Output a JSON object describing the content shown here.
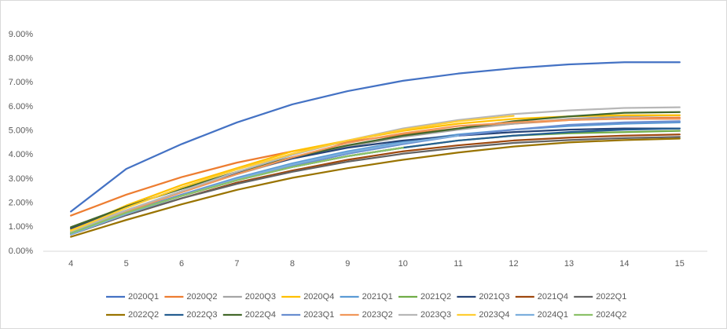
{
  "chart_data": {
    "type": "line",
    "categories": [
      4,
      5,
      6,
      7,
      8,
      9,
      10,
      11,
      12,
      13,
      14,
      15
    ],
    "ylim": [
      0,
      9
    ],
    "yticks": [
      {
        "value": 0,
        "label": "0.00%"
      },
      {
        "value": 1,
        "label": "1.00%"
      },
      {
        "value": 2,
        "label": "2.00%"
      },
      {
        "value": 3,
        "label": "3.00%"
      },
      {
        "value": 4,
        "label": "4.00%"
      },
      {
        "value": 5,
        "label": "5.00%"
      },
      {
        "value": 6,
        "label": "6.00%"
      },
      {
        "value": 7,
        "label": "7.00%"
      },
      {
        "value": 8,
        "label": "8.00%"
      },
      {
        "value": 9,
        "label": "9.00%"
      }
    ],
    "grid": false,
    "legend": "bottom",
    "series": [
      {
        "name": "2020Q1",
        "color": "#4472C4",
        "values": [
          1.65,
          3.42,
          4.45,
          5.35,
          6.1,
          6.65,
          7.08,
          7.38,
          7.6,
          7.76,
          7.85,
          7.85
        ]
      },
      {
        "name": "2020Q2",
        "color": "#ED7D31",
        "values": [
          1.48,
          2.35,
          3.08,
          3.68,
          4.15,
          4.55,
          4.85,
          5.1,
          5.3,
          5.45,
          5.52,
          5.55
        ]
      },
      {
        "name": "2020Q3",
        "color": "#A5A5A5",
        "values": [
          0.85,
          1.7,
          2.45,
          3.2,
          3.85,
          4.35,
          4.75,
          5.05,
          5.3,
          5.5,
          5.6,
          5.65
        ]
      },
      {
        "name": "2020Q4",
        "color": "#FFC000",
        "values": [
          0.9,
          1.9,
          2.75,
          3.45,
          4.15,
          4.6,
          5.0,
          5.3,
          5.5,
          5.6,
          5.65,
          5.65
        ]
      },
      {
        "name": "2021Q1",
        "color": "#5B9BD5",
        "values": [
          0.75,
          1.6,
          2.35,
          3.05,
          3.65,
          4.15,
          4.55,
          4.85,
          5.05,
          5.2,
          5.3,
          5.35
        ]
      },
      {
        "name": "2021Q2",
        "color": "#70AD47",
        "values": [
          0.8,
          1.65,
          2.3,
          2.95,
          3.5,
          3.95,
          4.3,
          4.6,
          4.8,
          4.9,
          4.95,
          5.0
        ]
      },
      {
        "name": "2021Q3",
        "color": "#264478",
        "values": [
          0.95,
          1.85,
          2.6,
          3.25,
          3.85,
          4.3,
          4.6,
          4.8,
          4.95,
          5.05,
          5.1,
          5.1
        ]
      },
      {
        "name": "2021Q4",
        "color": "#9E480E",
        "values": [
          0.7,
          1.5,
          2.2,
          2.85,
          3.35,
          3.8,
          4.15,
          4.4,
          4.6,
          4.72,
          4.8,
          4.85
        ]
      },
      {
        "name": "2022Q1",
        "color": "#636363",
        "values": [
          0.7,
          1.5,
          2.2,
          2.8,
          3.3,
          3.72,
          4.05,
          4.3,
          4.5,
          4.62,
          4.7,
          4.75
        ]
      },
      {
        "name": "2022Q2",
        "color": "#997300",
        "values": [
          0.6,
          1.3,
          1.95,
          2.55,
          3.05,
          3.45,
          3.8,
          4.1,
          4.35,
          4.52,
          4.62,
          4.68
        ]
      },
      {
        "name": "2022Q3",
        "color": "#255E91",
        "values": [
          0.75,
          1.6,
          2.3,
          2.95,
          3.5,
          3.95,
          4.3,
          4.6,
          4.8,
          4.95,
          5.05,
          5.1
        ]
      },
      {
        "name": "2022Q4",
        "color": "#43682B",
        "values": [
          1.0,
          1.85,
          2.6,
          3.3,
          3.9,
          4.4,
          4.8,
          5.1,
          5.4,
          5.6,
          5.75,
          5.78
        ]
      },
      {
        "name": "2023Q1",
        "color": "#698ED0",
        "values": [
          0.7,
          1.6,
          2.35,
          3.0,
          3.55,
          4.05,
          4.45,
          4.8,
          5.05,
          5.25,
          5.35,
          5.4
        ]
      },
      {
        "name": "2023Q2",
        "color": "#F1975A",
        "values": [
          0.75,
          1.65,
          2.45,
          3.2,
          3.9,
          4.5,
          4.9,
          5.2,
          5.35,
          5.45,
          5.5,
          5.5
        ]
      },
      {
        "name": "2023Q3",
        "color": "#B7B7B7",
        "values": [
          0.8,
          1.7,
          2.5,
          3.3,
          4.0,
          4.6,
          5.1,
          5.45,
          5.7,
          5.85,
          5.95,
          5.98
        ]
      },
      {
        "name": "2023Q4",
        "color": "#FFCD33",
        "values": [
          0.85,
          1.8,
          2.65,
          3.4,
          4.05,
          4.6,
          5.05,
          5.4,
          5.62,
          null,
          null,
          null
        ]
      },
      {
        "name": "2024Q1",
        "color": "#7CAFDD",
        "values": [
          0.7,
          1.55,
          2.3,
          3.0,
          3.6,
          4.1,
          4.5,
          4.8,
          null,
          null,
          null,
          null
        ]
      },
      {
        "name": "2024Q2",
        "color": "#8CC168",
        "values": [
          0.75,
          1.6,
          2.3,
          2.95,
          3.5,
          3.95,
          4.3,
          null,
          null,
          null,
          null,
          null
        ]
      }
    ]
  }
}
